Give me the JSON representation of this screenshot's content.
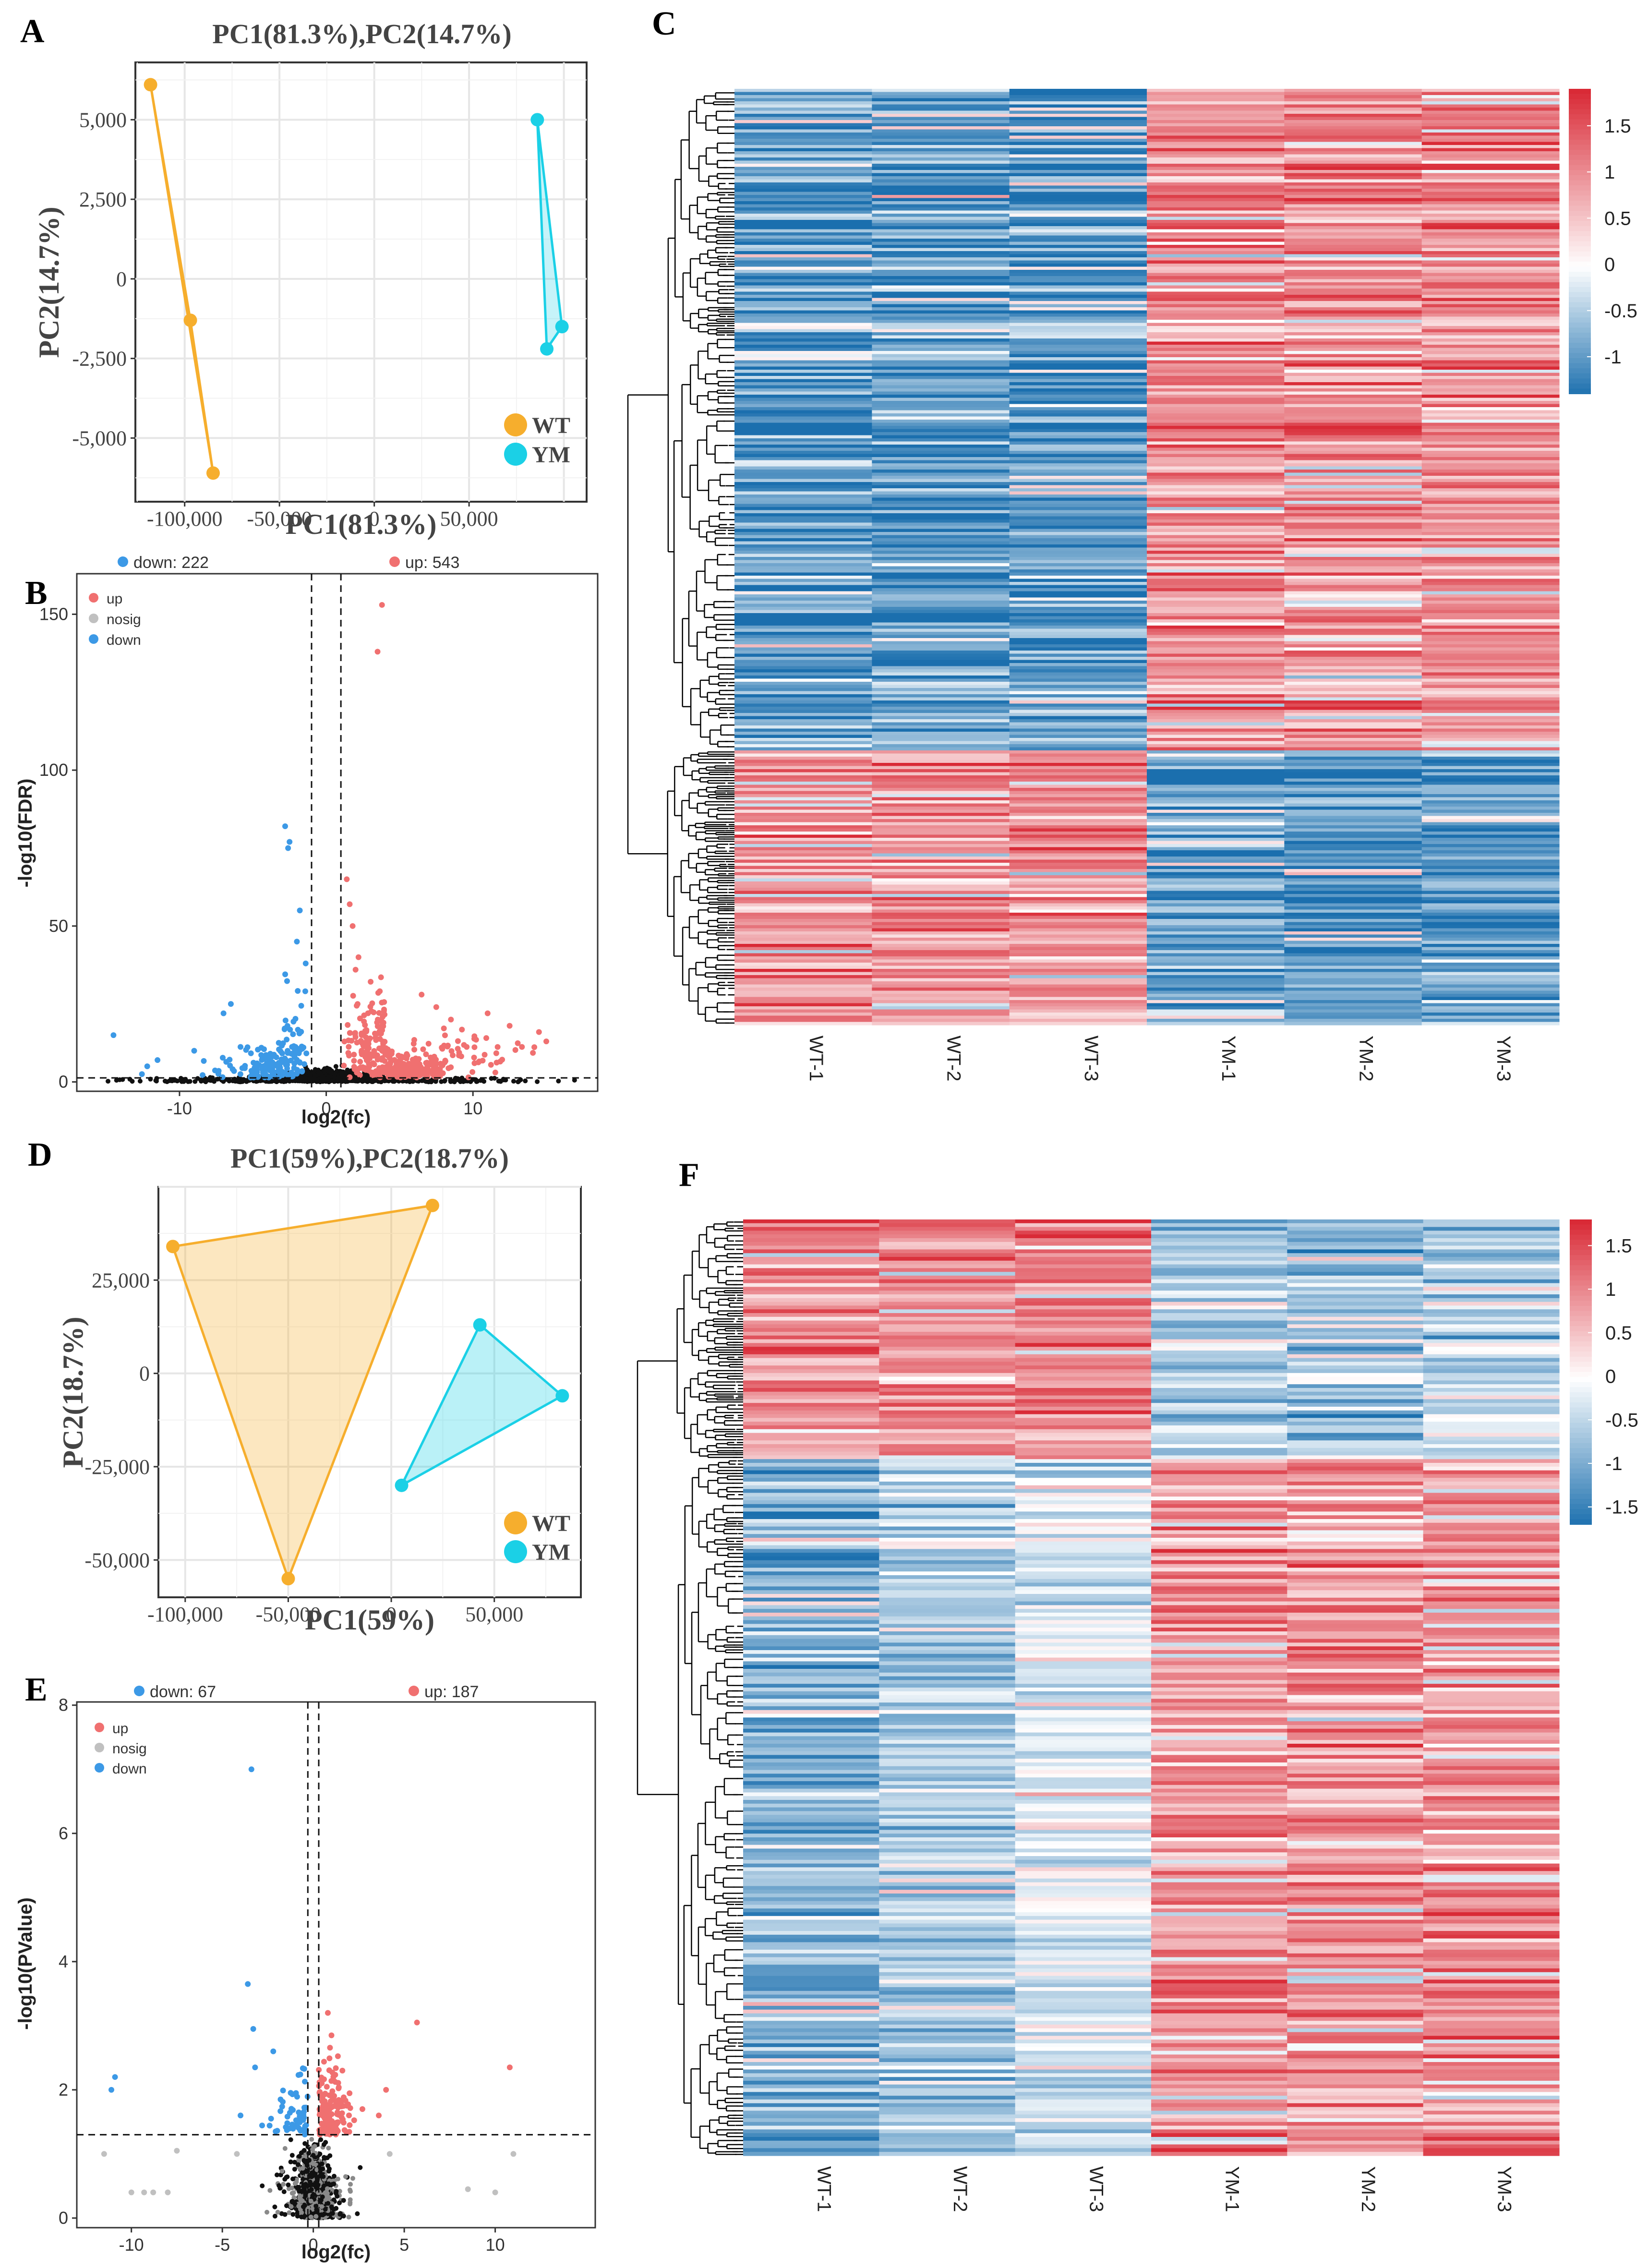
{
  "colors": {
    "wt": "#F6AE2D",
    "ym": "#1BD0E6",
    "up": "#F07070",
    "down": "#3C99E6",
    "nosig": "#C0C0C0",
    "ns_dark": "#111111",
    "heat_low": "#1B6FAE",
    "heat_mid": "#FFFFFF",
    "heat_high": "#D92A36"
  },
  "chart_data": [
    {
      "panel": "A",
      "type": "scatter",
      "title": "PC1(81.3%),PC2(14.7%)",
      "xlabel": "PC1(81.3%)",
      "ylabel": "PC2(14.7%)",
      "xlim": [
        -126000,
        112000
      ],
      "ylim": [
        -7000,
        6800
      ],
      "xticks": [
        -100000,
        -50000,
        0,
        50000
      ],
      "xtick_labels": [
        "-100,000",
        "-50,000",
        "0",
        "50,000"
      ],
      "yticks": [
        -5000,
        -2500,
        0,
        2500,
        5000
      ],
      "ytick_labels": [
        "-5,000",
        "-2,500",
        "0",
        "2,500",
        "5,000"
      ],
      "grid": true,
      "legend_position": "bottom-right",
      "series": [
        {
          "name": "WT",
          "points": [
            [
              -118000,
              6100
            ],
            [
              -97000,
              -1300
            ],
            [
              -85000,
              -6100
            ]
          ]
        },
        {
          "name": "YM",
          "points": [
            [
              86000,
              5000
            ],
            [
              91000,
              -2200
            ],
            [
              99000,
              -1500
            ]
          ]
        }
      ]
    },
    {
      "panel": "B",
      "type": "scatter",
      "subtype": "volcano",
      "xlabel": "log2(fc)",
      "ylabel": "-log10(FDR)",
      "xlim": [
        -17,
        18.5
      ],
      "ylim": [
        -3,
        163
      ],
      "xticks": [
        -10,
        0,
        10
      ],
      "xtick_labels": [
        "-10",
        "0",
        "10"
      ],
      "yticks": [
        0,
        50,
        100,
        150
      ],
      "ytick_labels": [
        "0",
        "50",
        "100",
        "150"
      ],
      "threshold_x": [
        -1,
        1
      ],
      "threshold_y": 1.3,
      "legend_position": "top-left",
      "legend": [
        "up",
        "nosig",
        "down"
      ],
      "down_count_label": "down: 222",
      "up_count_label": "up: 543",
      "highlight_points": {
        "up": [
          [
            3.8,
            153
          ],
          [
            3.5,
            138
          ],
          [
            1.4,
            65
          ],
          [
            1.6,
            57
          ],
          [
            1.8,
            50
          ],
          [
            2.2,
            40
          ],
          [
            2.0,
            36
          ],
          [
            14.5,
            16
          ],
          [
            15.0,
            13
          ],
          [
            12.5,
            18
          ],
          [
            11.0,
            22
          ],
          [
            6.5,
            28
          ],
          [
            7.5,
            24
          ],
          [
            8.5,
            20
          ]
        ],
        "down": [
          [
            -2.8,
            82
          ],
          [
            -2.5,
            77
          ],
          [
            -2.6,
            75
          ],
          [
            -1.8,
            55
          ],
          [
            -2.0,
            45
          ],
          [
            -1.4,
            38
          ],
          [
            -6.5,
            25
          ],
          [
            -7.0,
            22
          ],
          [
            -14.5,
            15
          ],
          [
            -11.5,
            7
          ],
          [
            -12.2,
            5
          ],
          [
            -9.0,
            10
          ]
        ]
      }
    },
    {
      "panel": "C",
      "type": "heatmap",
      "columns": [
        "WT-1",
        "WT-2",
        "WT-3",
        "YM-1",
        "YM-2",
        "YM-3"
      ],
      "row_clusters": [
        {
          "fraction": 0.705,
          "values": [
            -1,
            -1,
            -1,
            1,
            1,
            1
          ]
        },
        {
          "fraction": 0.295,
          "values": [
            1,
            1,
            1,
            -1,
            -1,
            -1
          ]
        }
      ],
      "scale_ticks": [
        "1.5",
        "1",
        "0.5",
        "0",
        "-0.5",
        "-1"
      ],
      "scale_values": [
        1.5,
        1,
        0.5,
        0,
        -0.5,
        -1
      ],
      "scale_range": [
        -1.4,
        1.9
      ],
      "dendrogram": true
    },
    {
      "panel": "D",
      "type": "scatter",
      "title": "PC1(59%),PC2(18.7%)",
      "xlabel": "PC1(59%)",
      "ylabel": "PC2(18.7%)",
      "xlim": [
        -113000,
        92000
      ],
      "ylim": [
        -60000,
        50000
      ],
      "xticks": [
        -100000,
        -50000,
        0,
        50000
      ],
      "xtick_labels": [
        "-100,000",
        "-50,000",
        "0",
        "50,000"
      ],
      "yticks": [
        -50000,
        -25000,
        0,
        25000
      ],
      "ytick_labels": [
        "-50,000",
        "-25,000",
        "0",
        "25,000"
      ],
      "grid": true,
      "legend_position": "bottom-right",
      "series": [
        {
          "name": "WT",
          "points": [
            [
              -106000,
              34000
            ],
            [
              20000,
              45000
            ],
            [
              -50000,
              -55000
            ]
          ]
        },
        {
          "name": "YM",
          "points": [
            [
              43000,
              13000
            ],
            [
              83000,
              -6000
            ],
            [
              5000,
              -30000
            ]
          ]
        }
      ]
    },
    {
      "panel": "E",
      "type": "scatter",
      "subtype": "volcano",
      "xlabel": "log2(fc)",
      "ylabel": "-log10(PValue)",
      "xlim": [
        -13,
        15.5
      ],
      "ylim": [
        -0.15,
        8.05
      ],
      "xticks": [
        -10,
        -5,
        0,
        5,
        10
      ],
      "xtick_labels": [
        "-10",
        "-5",
        "0",
        "5",
        "10"
      ],
      "yticks": [
        0,
        2,
        4,
        6,
        8
      ],
      "ytick_labels": [
        "0",
        "2",
        "4",
        "6",
        "8"
      ],
      "threshold_x": [
        -0.3,
        0.3
      ],
      "threshold_y": 1.3,
      "legend_position": "top-left",
      "legend": [
        "up",
        "nosig",
        "down"
      ],
      "down_count_label": "down: 67",
      "up_count_label": "up: 187",
      "highlight_points": {
        "up": [
          [
            5.7,
            3.05
          ],
          [
            10.8,
            2.35
          ],
          [
            4.0,
            2.0
          ],
          [
            3.6,
            1.6
          ],
          [
            2.7,
            1.7
          ],
          [
            1.6,
            2.3
          ],
          [
            1.0,
            2.85
          ],
          [
            0.8,
            3.2
          ],
          [
            2.0,
            1.45
          ]
        ],
        "down": [
          [
            -3.4,
            7.0
          ],
          [
            -3.6,
            3.65
          ],
          [
            -3.3,
            2.95
          ],
          [
            -3.2,
            2.35
          ],
          [
            -10.9,
            2.2
          ],
          [
            -11.1,
            2.0
          ],
          [
            -2.2,
            2.6
          ],
          [
            -4.0,
            1.6
          ],
          [
            -1.8,
            1.85
          ]
        ],
        "nosig": [
          [
            -11.5,
            1.0
          ],
          [
            -10.0,
            0.4
          ],
          [
            -9.3,
            0.4
          ],
          [
            -8.8,
            0.4
          ],
          [
            -8.0,
            0.4
          ],
          [
            -7.5,
            1.05
          ],
          [
            10.0,
            0.4
          ],
          [
            11.0,
            1.0
          ],
          [
            8.5,
            0.45
          ],
          [
            -4.2,
            1.0
          ],
          [
            4.2,
            1.0
          ]
        ]
      }
    },
    {
      "panel": "F",
      "type": "heatmap",
      "columns": [
        "WT-1",
        "WT-2",
        "WT-3",
        "YM-1",
        "YM-2",
        "YM-3"
      ],
      "row_clusters": [
        {
          "fraction": 0.255,
          "values": [
            1,
            1,
            1,
            -0.6,
            -0.8,
            -0.6
          ]
        },
        {
          "fraction": 0.745,
          "values": [
            -0.9,
            -0.6,
            -0.3,
            0.9,
            0.9,
            0.9
          ]
        }
      ],
      "scale_ticks": [
        "1.5",
        "1",
        "0.5",
        "0",
        "-0.5",
        "-1",
        "-1.5"
      ],
      "scale_values": [
        1.5,
        1,
        0.5,
        0,
        -0.5,
        -1,
        -1.5
      ],
      "scale_range": [
        -1.7,
        1.8
      ],
      "dendrogram": true
    }
  ],
  "panel_letters": [
    "A",
    "B",
    "C",
    "D",
    "E",
    "F"
  ]
}
